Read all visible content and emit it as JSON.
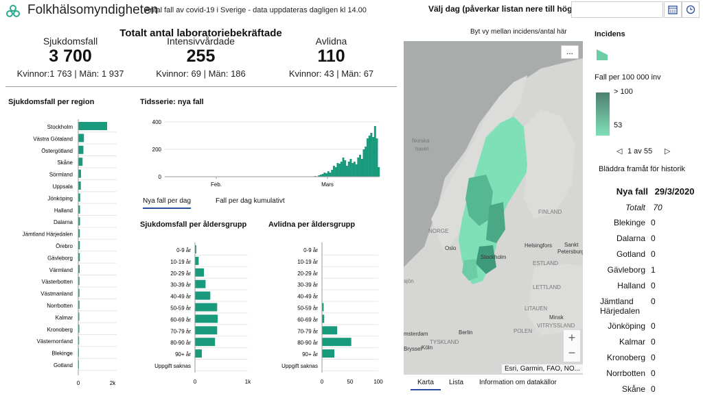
{
  "header": {
    "title": "Folkhälsomyndigheten",
    "subtitle": "Antal fall av covid-19 i Sverige - data uppdateras dagligen kl 14.00",
    "date_label": "Välj dag (påverkar listan nere till höger)",
    "date_value": ""
  },
  "totals": {
    "title": "Totalt antal laboratoriebekräftade",
    "cases": {
      "label": "Sjukdomsfall",
      "value": "3 700",
      "split": "Kvinnor:1 763 | Män: 1 937"
    },
    "icu": {
      "label": "Intensivvårdade",
      "value": "255",
      "split": "Kvinnor: 69 | Män: 186"
    },
    "deaths": {
      "label": "Avlidna",
      "value": "110",
      "split": "Kvinnor: 43 | Män: 67"
    }
  },
  "colors": {
    "bar": "#1a9a7c",
    "accent": "#2a4aa0"
  },
  "region_chart": {
    "title": "Sjukdomsfall per region",
    "ticks": [
      "0",
      "2k"
    ],
    "chart_data": {
      "type": "bar",
      "categories": [
        "Stockholm",
        "Västra Götaland",
        "Östergötland",
        "Skåne",
        "Sörmland",
        "Uppsala",
        "Jönköping",
        "Halland",
        "Dalarna",
        "Jämtland Härjedalen",
        "Örebro",
        "Gävleborg",
        "Värmland",
        "Västerbotten",
        "Västmanland",
        "Norrbotten",
        "Kalmar",
        "Kronoberg",
        "Västernorrland",
        "Blekinge",
        "Gotland"
      ],
      "values": [
        1680,
        330,
        300,
        250,
        160,
        150,
        110,
        100,
        100,
        90,
        90,
        90,
        80,
        70,
        70,
        70,
        60,
        60,
        50,
        30,
        5
      ],
      "xlim": [
        0,
        2000
      ]
    }
  },
  "timeseries": {
    "title": "Tidsserie: nya fall",
    "yticks": [
      "400",
      "200",
      "0"
    ],
    "xticks": [
      "Feb.",
      "Mars"
    ],
    "tab1": "Nya fall per dag",
    "tab2": "Fall per dag kumulativt",
    "chart_data": {
      "type": "bar",
      "ylim": [
        0,
        400
      ],
      "values": [
        0,
        0,
        0,
        0,
        0,
        0,
        0,
        0,
        0,
        0,
        0,
        0,
        0,
        0,
        0,
        0,
        0,
        0,
        0,
        0,
        0,
        0,
        0,
        0,
        0,
        0,
        0,
        0,
        0,
        0,
        0,
        0,
        0,
        1,
        0,
        0,
        0,
        0,
        0,
        0,
        0,
        0,
        0,
        0,
        0,
        0,
        0,
        0,
        0,
        0,
        0,
        0,
        0,
        0,
        0,
        0,
        1,
        0,
        1,
        0,
        0,
        0,
        0,
        0,
        0,
        0,
        0,
        0,
        0,
        0,
        0,
        0,
        0,
        0,
        0,
        0,
        0,
        0,
        0,
        0,
        5,
        2,
        10,
        15,
        20,
        30,
        25,
        40,
        30,
        50,
        80,
        70,
        100,
        95,
        110,
        140,
        120,
        80,
        110,
        130,
        100,
        110,
        90,
        140,
        160,
        130,
        200,
        220,
        280,
        300,
        320,
        290,
        370,
        280,
        70
      ]
    }
  },
  "age_cases": {
    "title": "Sjukdomsfall per åldersgrupp",
    "ticks": [
      "0",
      "1k"
    ],
    "chart_data": {
      "type": "bar",
      "categories": [
        "0-9 år",
        "10-19 år",
        "20-29 år",
        "30-39 år",
        "40-49 år",
        "50-59 år",
        "60-69 år",
        "70-79 år",
        "80-90 år",
        "90+ år",
        "Uppgift saknas"
      ],
      "values": [
        25,
        70,
        170,
        200,
        290,
        420,
        430,
        420,
        380,
        130,
        0
      ],
      "xlim": [
        0,
        1000
      ]
    }
  },
  "age_deaths": {
    "title": "Avlidna per åldersgrupp",
    "ticks": [
      "0",
      "50",
      "100"
    ],
    "chart_data": {
      "type": "bar",
      "categories": [
        "0-9 år",
        "10-19 år",
        "20-29 år",
        "30-39 år",
        "40-49 år",
        "50-59 år",
        "60-69 år",
        "70-79 år",
        "80-90 år",
        "90+ år",
        "Uppgift saknas"
      ],
      "values": [
        0,
        0,
        0,
        0,
        0,
        3,
        4,
        27,
        52,
        22,
        0
      ],
      "xlim": [
        0,
        100
      ]
    }
  },
  "map": {
    "toggle_text": "Byt vy mellan incidens/antal här",
    "more": "...",
    "attribution": "Esri, Garmin, FAO, NO...",
    "labels": {
      "norska": "Norska",
      "havet": "havet",
      "finland": "FINLAND",
      "norge": "NORGE",
      "oslo": "Oslo",
      "stockholm": "Stockholm",
      "helsingfors": "Helsingfors",
      "sankt": "Sankt",
      "petersburg": "Petersburg",
      "estland": "ESTLAND",
      "lettland": "LETTLAND",
      "litauen": "LITAUEN",
      "vitryssland": "VITRYSSLAND",
      "minsk": "Minsk",
      "polen": "POLEN",
      "berlin": "Berlin",
      "tyskland": "TYSKLAND",
      "amsterdam": "msterdam",
      "bryssel": "Bryssel",
      "koln": "Köln",
      "sjon": "sjön"
    },
    "tabs": [
      "Karta",
      "Lista",
      "Information om datakällor"
    ]
  },
  "legend": {
    "title": "Incidens",
    "subtitle": "Fall per 100 000 inv",
    "high": "> 100",
    "low": "53",
    "pager": "1 av 55",
    "hint": "Bläddra framåt för historik"
  },
  "daily": {
    "header_label": "Nya fall",
    "header_date": "29/3/2020",
    "total_label": "Totalt",
    "total_value": "70",
    "rows": [
      {
        "name": "Blekinge",
        "value": "0"
      },
      {
        "name": "Dalarna",
        "value": "0"
      },
      {
        "name": "Gotland",
        "value": "0"
      },
      {
        "name": "Gävleborg",
        "value": "1"
      },
      {
        "name": "Halland",
        "value": "0"
      },
      {
        "name": "Jämtland Härjedalen",
        "value": "0"
      },
      {
        "name": "Jönköping",
        "value": "0"
      },
      {
        "name": "Kalmar",
        "value": "0"
      },
      {
        "name": "Kronoberg",
        "value": "0"
      },
      {
        "name": "Norrbotten",
        "value": "0"
      },
      {
        "name": "Skåne",
        "value": "0"
      }
    ]
  }
}
